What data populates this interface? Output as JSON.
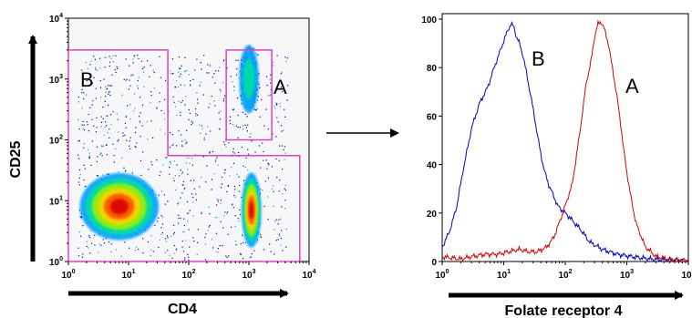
{
  "chart_data": [
    {
      "type": "scatter",
      "subtype": "flow-cytometry-density",
      "xlabel": "CD4",
      "ylabel": "CD25",
      "x_scale": "log",
      "y_scale": "log",
      "xlim": [
        1,
        10000
      ],
      "ylim": [
        1,
        10000
      ],
      "x_ticks": [
        {
          "base": "10",
          "exp": "0"
        },
        {
          "base": "10",
          "exp": "1"
        },
        {
          "base": "10",
          "exp": "2"
        },
        {
          "base": "10",
          "exp": "3"
        },
        {
          "base": "10",
          "exp": "4"
        }
      ],
      "y_ticks": [
        {
          "base": "10",
          "exp": "0"
        },
        {
          "base": "10",
          "exp": "1"
        },
        {
          "base": "10",
          "exp": "2"
        },
        {
          "base": "10",
          "exp": "3"
        },
        {
          "base": "10",
          "exp": "4"
        }
      ],
      "populations": [
        {
          "cd4": 7,
          "cd25": 8,
          "spread": "large",
          "density": "high"
        },
        {
          "cd4": 1000,
          "cd25": 1000,
          "spread": "medium",
          "density": "medium"
        },
        {
          "cd4": 1100,
          "cd25": 7,
          "spread": "medium",
          "density": "high"
        }
      ],
      "gates": [
        {
          "label": "B",
          "cd4_range": [
            1,
            45
          ],
          "cd25_range": [
            1,
            3000
          ],
          "lower_right_step": {
            "cd4_range": [
              45,
              7000
            ],
            "cd25_range": [
              1,
              55
            ]
          },
          "color": "#e040c0"
        },
        {
          "label": "A",
          "cd4_range": [
            420,
            2400
          ],
          "cd25_range": [
            100,
            3000
          ],
          "color": "#e040c0"
        }
      ],
      "colormap": [
        "#0000c8",
        "#00a0ff",
        "#00e0a0",
        "#a0f000",
        "#ffd000",
        "#ff5000",
        "#d80000"
      ]
    },
    {
      "type": "line",
      "subtype": "histogram",
      "xlabel": "Folate receptor 4",
      "ylabel": "",
      "x_scale": "log",
      "xlim": [
        1,
        10000
      ],
      "ylim": [
        0,
        100
      ],
      "x_ticks": [
        {
          "base": "10",
          "exp": "0"
        },
        {
          "base": "10",
          "exp": "1"
        },
        {
          "base": "10",
          "exp": "2"
        },
        {
          "base": "10",
          "exp": "3"
        },
        {
          "base": "10",
          "exp": "4"
        }
      ],
      "y_ticks": [
        "0",
        "20",
        "40",
        "60",
        "80",
        "100"
      ],
      "series": [
        {
          "name": "B",
          "color": "#0000cc",
          "x": [
            1,
            1.3,
            1.7,
            2.2,
            3,
            4,
            5.5,
            7,
            8.5,
            10,
            11.5,
            13,
            14.5,
            16,
            18,
            21,
            25,
            30,
            37,
            45,
            55,
            65,
            75,
            90,
            110,
            140,
            180,
            250,
            400,
            700,
            1200,
            2500,
            5000,
            10000
          ],
          "y": [
            6,
            12,
            22,
            38,
            55,
            65,
            72,
            80,
            86,
            91,
            95,
            98,
            97,
            93,
            90,
            84,
            74,
            63,
            49,
            38,
            31,
            27,
            23,
            21,
            19,
            16,
            13,
            8,
            5,
            3,
            2,
            1,
            0.5,
            0.3
          ]
        },
        {
          "name": "A",
          "color": "#dd0000",
          "x": [
            1,
            2,
            3,
            5,
            8,
            12,
            18,
            25,
            35,
            50,
            65,
            80,
            100,
            130,
            170,
            220,
            260,
            300,
            340,
            380,
            430,
            500,
            600,
            750,
            900,
            1100,
            1400,
            2000,
            3000,
            5000,
            10000
          ],
          "y": [
            2,
            1,
            2,
            3,
            3,
            4,
            5,
            4,
            4,
            6,
            10,
            16,
            23,
            32,
            52,
            74,
            82,
            93,
            98,
            99,
            96,
            90,
            78,
            62,
            45,
            30,
            16,
            6,
            2,
            1,
            0.5
          ]
        }
      ]
    }
  ],
  "annotations": {
    "arrow": "→"
  }
}
